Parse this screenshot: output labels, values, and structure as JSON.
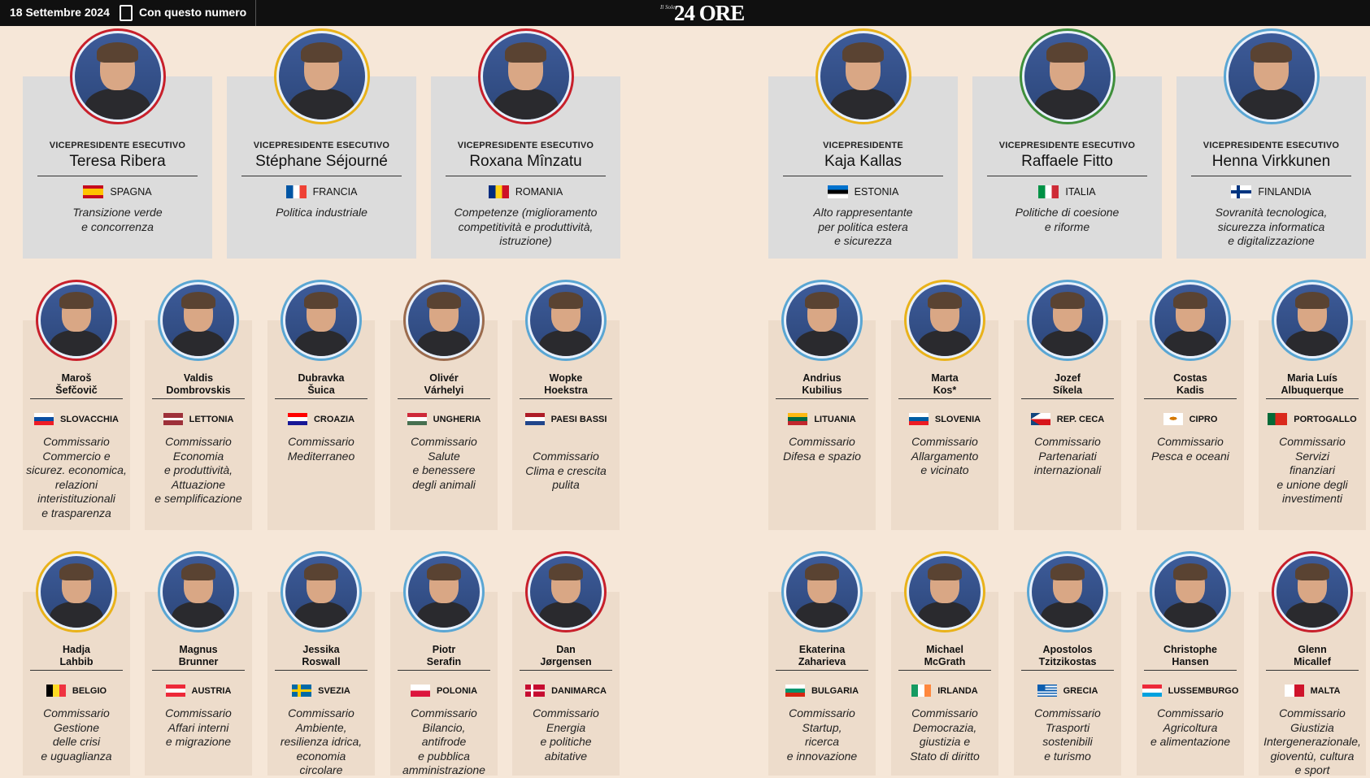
{
  "topbar": {
    "date": "18 Settembre 2024",
    "issue": "Con questo numero",
    "logo_small": "Il Sole",
    "logo": "24 ORE"
  },
  "top_row": [
    {
      "role": "VICEPRESIDENTE ESECUTIVO",
      "name": "Teresa Ribera",
      "country": "SPAGNA",
      "portfolio": [
        "Transizione verde",
        "e concorrenza"
      ],
      "ring": "#c8202b",
      "flag": "spain"
    },
    {
      "role": "VICEPRESIDENTE ESECUTIVO",
      "name": "Stéphane Séjourné",
      "country": "FRANCIA",
      "portfolio": [
        "Politica industriale"
      ],
      "ring": "#e9b21a",
      "flag": "france"
    },
    {
      "role": "VICEPRESIDENTE ESECUTIVO",
      "name": "Roxana Mînzatu",
      "country": "ROMANIA",
      "portfolio": [
        "Competenze (miglioramento",
        "competitività e produttività,",
        "istruzione)"
      ],
      "ring": "#c8202b",
      "flag": "romania"
    },
    {
      "role": "VICEPRESIDENTE",
      "name": "Kaja Kallas",
      "country": "ESTONIA",
      "portfolio": [
        "Alto rappresentante",
        "per politica estera",
        "e sicurezza"
      ],
      "ring": "#e9b21a",
      "flag": "estonia"
    },
    {
      "role": "VICEPRESIDENTE ESECUTIVO",
      "name": "Raffaele Fitto",
      "country": "ITALIA",
      "portfolio": [
        "Politiche di coesione",
        "e riforme"
      ],
      "ring": "#3f8f3b",
      "flag": "italy"
    },
    {
      "role": "VICEPRESIDENTE ESECUTIVO",
      "name": "Henna Virkkunen",
      "country": "FINLANDIA",
      "portfolio": [
        "Sovranità tecnologica,",
        "sicurezza informatica",
        "e digitalizzazione"
      ],
      "ring": "#5aa6d3",
      "flag": "finland"
    }
  ],
  "middle_row": [
    {
      "name": [
        "Maroš",
        "Šefčovič"
      ],
      "country": "SLOVACCHIA",
      "portfolio": [
        "Commissario",
        "Commercio e",
        "sicurez. economica,",
        "relazioni",
        "interistituzionali",
        "e trasparenza"
      ],
      "ring": "#c8202b",
      "flag": "slovakia"
    },
    {
      "name": [
        "Valdis",
        "Dombrovskis"
      ],
      "country": "LETTONIA",
      "portfolio": [
        "Commissario",
        "Economia",
        "e produttività,",
        "Attuazione",
        "e semplificazione"
      ],
      "ring": "#5aa6d3",
      "flag": "latvia"
    },
    {
      "name": [
        "Dubravka",
        "Šuica"
      ],
      "country": "CROAZIA",
      "portfolio": [
        "Commissario",
        "Mediterraneo"
      ],
      "ring": "#5aa6d3",
      "flag": "croatia"
    },
    {
      "name": [
        "Olivér",
        "Várhelyi"
      ],
      "country": "UNGHERIA",
      "portfolio": [
        "Commissario",
        "Salute",
        "e benessere",
        "degli animali"
      ],
      "ring": "#9b6b4d",
      "flag": "hungary"
    },
    {
      "name": [
        "Wopke",
        "Hoekstra"
      ],
      "country": "PAESI BASSI",
      "portfolio": [
        "Commissario",
        "Clima e crescita",
        "pulita"
      ],
      "ring": "#5aa6d3",
      "flag": "netherlands"
    },
    {
      "name": [
        "Andrius",
        "Kubilius"
      ],
      "country": "LITUANIA",
      "portfolio": [
        "Commissario",
        "Difesa e spazio"
      ],
      "ring": "#5aa6d3",
      "flag": "lithuania"
    },
    {
      "name": [
        "Marta",
        "Kos*"
      ],
      "country": "SLOVENIA",
      "portfolio": [
        "Commissario",
        "Allargamento",
        "e vicinato"
      ],
      "ring": "#e9b21a",
      "flag": "slovenia"
    },
    {
      "name": [
        "Jozef",
        "Síkela"
      ],
      "country": "REP. CECA",
      "portfolio": [
        "Commissario",
        "Partenariati",
        "internazionali"
      ],
      "ring": "#5aa6d3",
      "flag": "czech"
    },
    {
      "name": [
        "Costas",
        "Kadis"
      ],
      "country": "CIPRO",
      "portfolio": [
        "Commissario",
        "Pesca e oceani"
      ],
      "ring": "#5aa6d3",
      "flag": "cyprus"
    },
    {
      "name": [
        "Maria Luís",
        "Albuquerque"
      ],
      "country": "PORTOGALLO",
      "portfolio": [
        "Commissario",
        "Servizi",
        "finanziari",
        "e unione degli",
        "investimenti"
      ],
      "ring": "#5aa6d3",
      "flag": "portugal"
    }
  ],
  "bottom_row": [
    {
      "name": [
        "Hadja",
        "Lahbib"
      ],
      "country": "BELGIO",
      "portfolio": [
        "Commissario",
        "Gestione",
        "delle crisi",
        "e uguaglianza"
      ],
      "ring": "#e9b21a",
      "flag": "belgium"
    },
    {
      "name": [
        "Magnus",
        "Brunner"
      ],
      "country": "AUSTRIA",
      "portfolio": [
        "Commissario",
        "Affari interni",
        "e migrazione"
      ],
      "ring": "#5aa6d3",
      "flag": "austria"
    },
    {
      "name": [
        "Jessika",
        "Roswall"
      ],
      "country": "SVEZIA",
      "portfolio": [
        "Commissario",
        "Ambiente,",
        "resilienza idrica,",
        "economia",
        "circolare"
      ],
      "ring": "#5aa6d3",
      "flag": "sweden"
    },
    {
      "name": [
        "Piotr",
        "Serafin"
      ],
      "country": "POLONIA",
      "portfolio": [
        "Commissario",
        "Bilancio,",
        "antifrode",
        "e pubblica",
        "amministrazione"
      ],
      "ring": "#5aa6d3",
      "flag": "poland"
    },
    {
      "name": [
        "Dan",
        "Jørgensen"
      ],
      "country": "DANIMARCA",
      "portfolio": [
        "Commissario",
        "Energia",
        "e politiche",
        "abitative"
      ],
      "ring": "#c8202b",
      "flag": "denmark"
    },
    {
      "name": [
        "Ekaterina",
        "Zaharieva"
      ],
      "country": "BULGARIA",
      "portfolio": [
        "Commissario",
        "Startup,",
        "ricerca",
        "e innovazione"
      ],
      "ring": "#5aa6d3",
      "flag": "bulgaria"
    },
    {
      "name": [
        "Michael",
        "McGrath"
      ],
      "country": "IRLANDA",
      "portfolio": [
        "Commissario",
        "Democrazia,",
        "giustizia e",
        "Stato di diritto"
      ],
      "ring": "#e9b21a",
      "flag": "ireland"
    },
    {
      "name": [
        "Apostolos",
        "Tzitzikostas"
      ],
      "country": "GRECIA",
      "portfolio": [
        "Commissario",
        "Trasporti",
        "sostenibili",
        "e turismo"
      ],
      "ring": "#5aa6d3",
      "flag": "greece"
    },
    {
      "name": [
        "Christophe",
        "Hansen"
      ],
      "country": "LUSSEMBURGO",
      "portfolio": [
        "Commissario",
        "Agricoltura",
        "e alimentazione"
      ],
      "ring": "#5aa6d3",
      "flag": "luxembourg"
    },
    {
      "name": [
        "Glenn",
        "Micallef"
      ],
      "country": "MALTA",
      "portfolio": [
        "Commissario",
        "Giustizia",
        "Intergenerazionale,",
        "gioventù, cultura",
        "e sport"
      ],
      "ring": "#c8202b",
      "flag": "malta"
    }
  ]
}
